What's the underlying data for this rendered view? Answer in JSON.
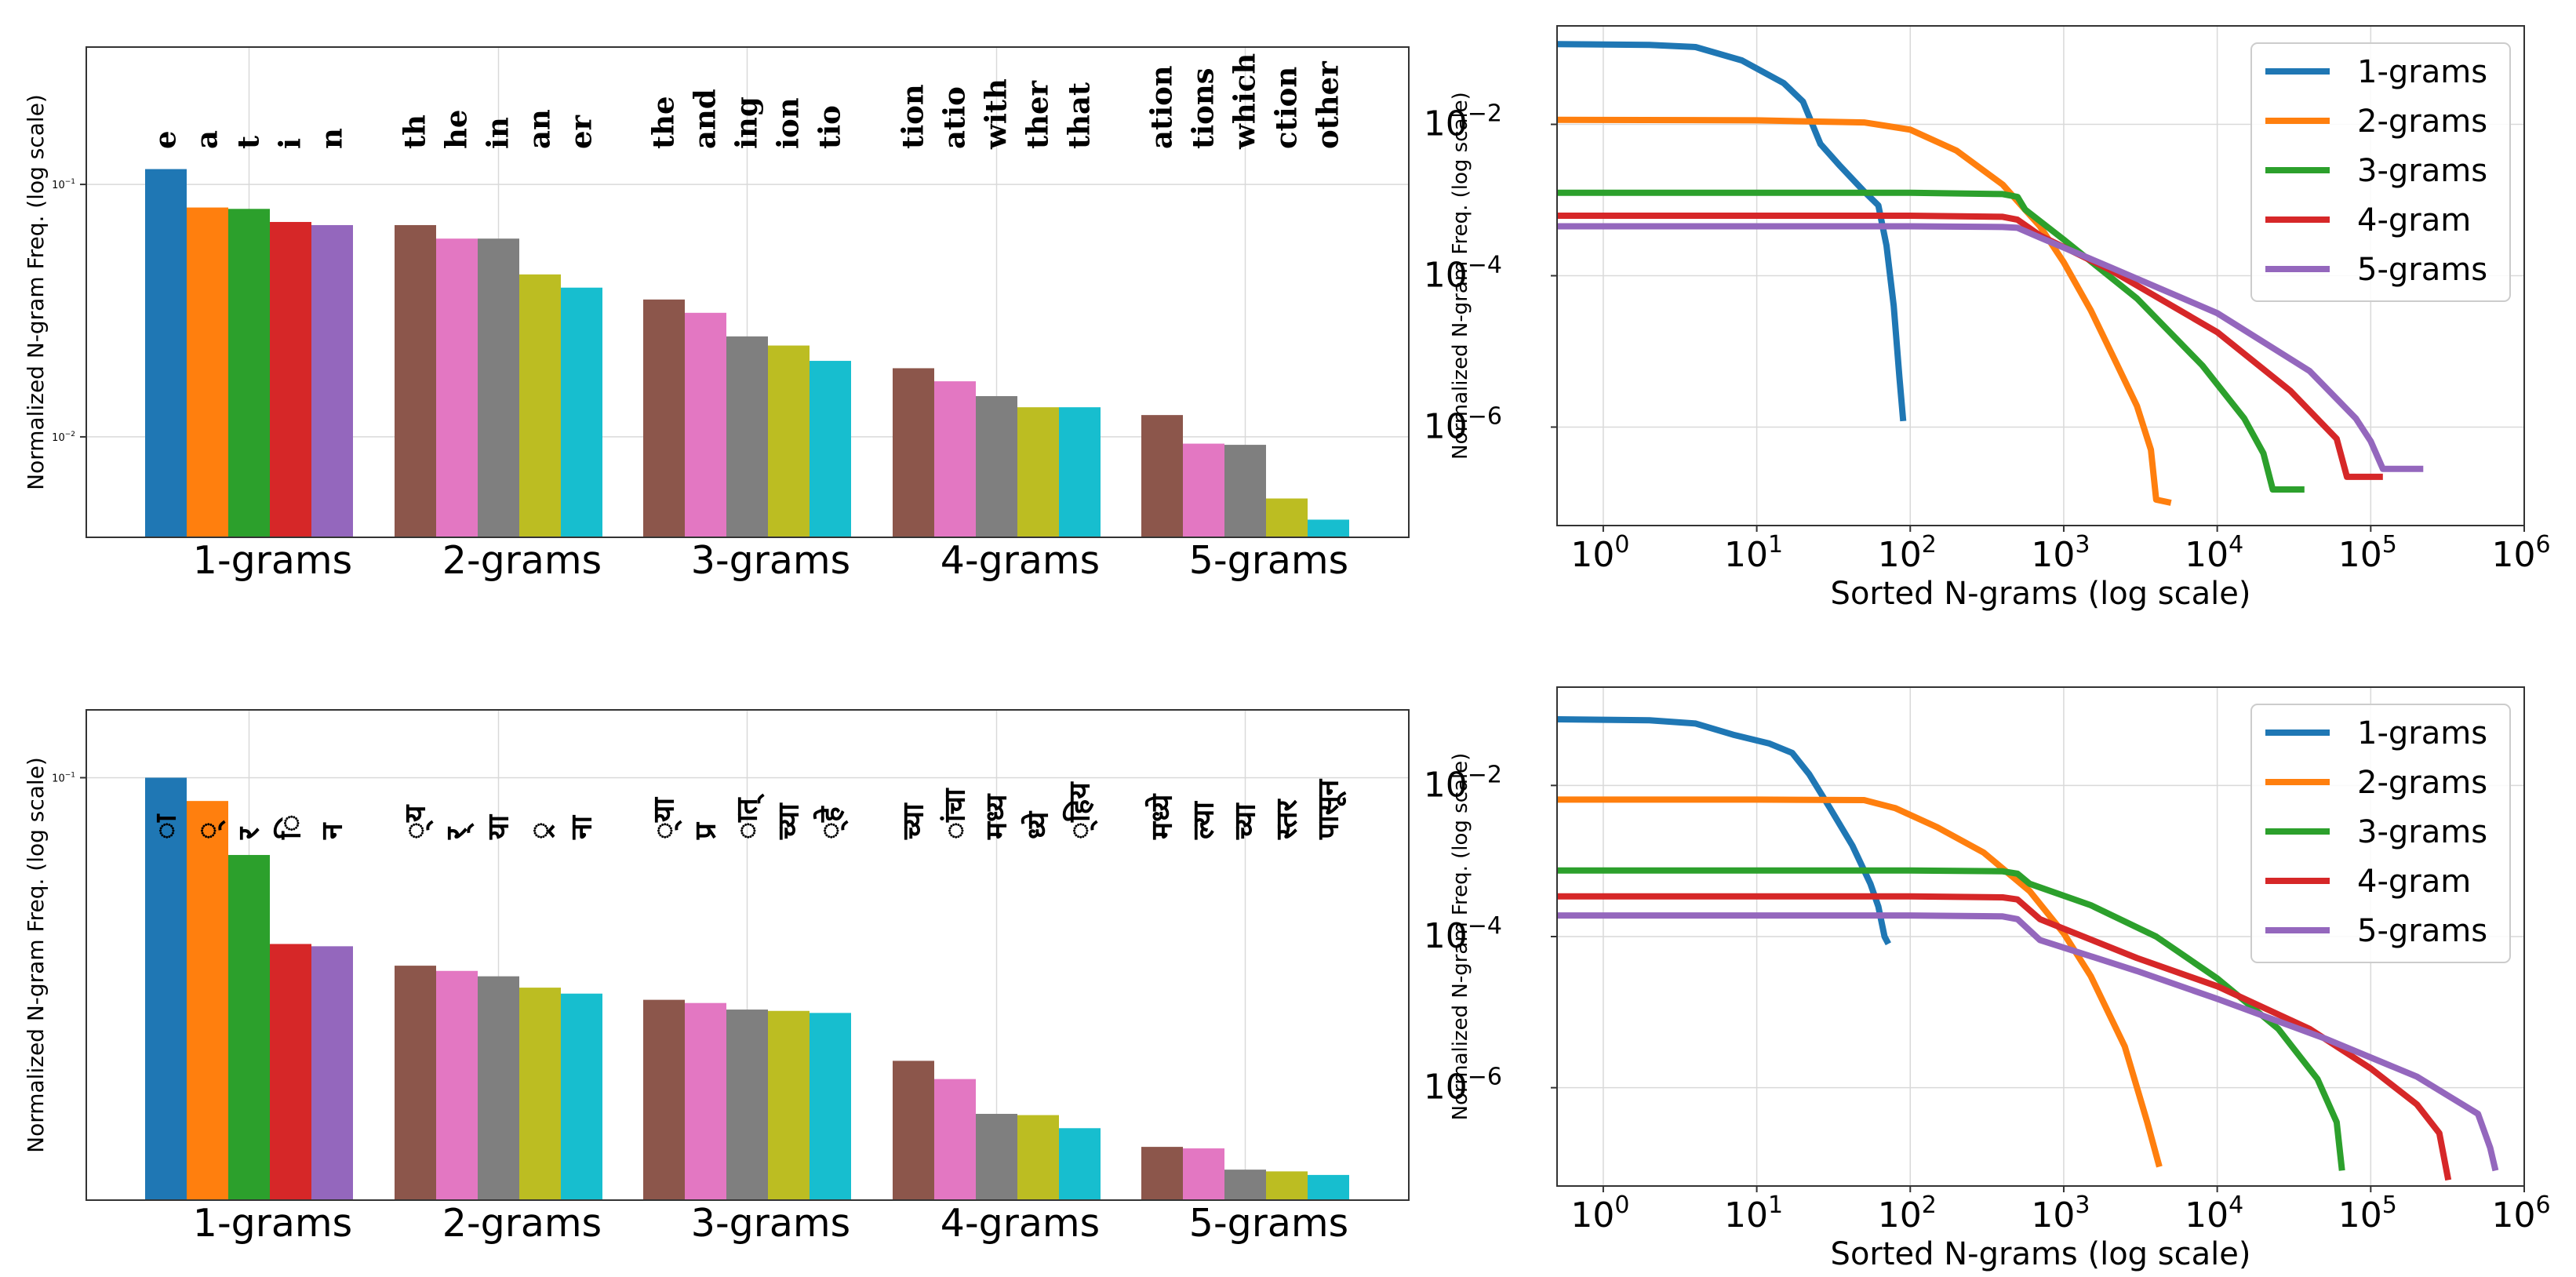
{
  "palette": [
    "#1f77b4",
    "#ff7f0e",
    "#2ca02c",
    "#d62728",
    "#9467bd",
    "#8c564b",
    "#e377c2",
    "#7f7f7f",
    "#bcbd22",
    "#17becf"
  ],
  "chart_data": [
    {
      "type": "bar",
      "panel": "top-left",
      "ylabel": "Normalized N-gram Freq. (log scale)",
      "yscale": "log",
      "ylim": [
        0.004,
        0.35
      ],
      "yticks": [
        {
          "value": 0.1,
          "base": "10",
          "exp": "−1"
        },
        {
          "value": 0.01,
          "base": "10",
          "exp": "−2"
        }
      ],
      "groups": [
        {
          "name": "1-grams",
          "labels": [
            "e",
            "a",
            "t",
            "i",
            "n"
          ],
          "values": [
            0.115,
            0.081,
            0.08,
            0.071,
            0.069
          ]
        },
        {
          "name": "2-grams",
          "labels": [
            "th",
            "he",
            "in",
            "an",
            "er"
          ],
          "values": [
            0.069,
            0.061,
            0.061,
            0.044,
            0.039
          ]
        },
        {
          "name": "3-grams",
          "labels": [
            "the",
            "and",
            "ing",
            "ion",
            "tio"
          ],
          "values": [
            0.035,
            0.031,
            0.025,
            0.023,
            0.02
          ]
        },
        {
          "name": "4-grams",
          "labels": [
            "tion",
            "atio",
            "with",
            "ther",
            "that"
          ],
          "values": [
            0.0187,
            0.0166,
            0.0145,
            0.0131,
            0.0131
          ]
        },
        {
          "name": "5-grams",
          "labels": [
            "ation",
            "tions",
            "which",
            "ction",
            "other"
          ],
          "values": [
            0.0122,
            0.0094,
            0.0093,
            0.0057,
            0.0047
          ]
        }
      ]
    },
    {
      "type": "line",
      "panel": "top-right",
      "xlabel": "Sorted N-grams (log scale)",
      "ylabel": "Normalized N-gram Freq. (log scale)",
      "xscale": "log",
      "yscale": "log",
      "xlim": [
        0.5,
        1000000
      ],
      "ylim": [
        5e-08,
        0.2
      ],
      "xticks": [
        {
          "value": 1,
          "base": "10",
          "exp": "0"
        },
        {
          "value": 10,
          "base": "10",
          "exp": "1"
        },
        {
          "value": 100,
          "base": "10",
          "exp": "2"
        },
        {
          "value": 1000,
          "base": "10",
          "exp": "3"
        },
        {
          "value": 10000,
          "base": "10",
          "exp": "4"
        },
        {
          "value": 100000,
          "base": "10",
          "exp": "5"
        },
        {
          "value": 1000000,
          "base": "10",
          "exp": "6"
        }
      ],
      "yticks": [
        {
          "value": 0.01,
          "base": "10",
          "exp": "−2"
        },
        {
          "value": 0.0001,
          "base": "10",
          "exp": "−4"
        },
        {
          "value": 1e-06,
          "base": "10",
          "exp": "−6"
        }
      ],
      "legend_position": "top-right",
      "series": [
        {
          "name": "1-grams",
          "color": "#1f77b4",
          "points": [
            [
              0.5,
              0.115
            ],
            [
              2,
              0.112
            ],
            [
              4,
              0.105
            ],
            [
              8,
              0.07
            ],
            [
              15,
              0.035
            ],
            [
              20,
              0.02
            ],
            [
              26,
              0.0055
            ],
            [
              35,
              0.0028
            ],
            [
              50,
              0.0013
            ],
            [
              62,
              0.00085
            ],
            [
              70,
              0.00025
            ],
            [
              78,
              4e-05
            ],
            [
              85,
              4.5e-06
            ],
            [
              90,
              1.2e-06
            ]
          ]
        },
        {
          "name": "2-grams",
          "color": "#ff7f0e",
          "points": [
            [
              0.5,
              0.0115
            ],
            [
              10,
              0.0113
            ],
            [
              50,
              0.0106
            ],
            [
              100,
              0.0085
            ],
            [
              200,
              0.0045
            ],
            [
              400,
              0.0016
            ],
            [
              700,
              0.00045
            ],
            [
              1000,
              0.00015
            ],
            [
              1500,
              3.5e-05
            ],
            [
              2200,
              7e-06
            ],
            [
              3000,
              1.9e-06
            ],
            [
              3700,
              5e-07
            ],
            [
              4000,
              1.1e-07
            ],
            [
              5000,
              1e-07
            ]
          ]
        },
        {
          "name": "3-grams",
          "color": "#2ca02c",
          "points": [
            [
              0.5,
              0.00125
            ],
            [
              100,
              0.00125
            ],
            [
              400,
              0.0012
            ],
            [
              500,
              0.0011
            ],
            [
              560,
              0.00075
            ],
            [
              1000,
              0.0003
            ],
            [
              3000,
              5e-05
            ],
            [
              8000,
              6.5e-06
            ],
            [
              15000,
              1.3e-06
            ],
            [
              20000,
              4.5e-07
            ],
            [
              23000,
              1.5e-07
            ],
            [
              37000,
              1.5e-07
            ]
          ]
        },
        {
          "name": "4-gram",
          "color": "#d62728",
          "points": [
            [
              0.5,
              0.00062
            ],
            [
              100,
              0.00062
            ],
            [
              400,
              0.0006
            ],
            [
              500,
              0.00055
            ],
            [
              700,
              0.00034
            ],
            [
              2000,
              0.00012
            ],
            [
              10000,
              1.8e-05
            ],
            [
              30000,
              3e-06
            ],
            [
              60000,
              7e-07
            ],
            [
              70000,
              2.2e-07
            ],
            [
              120000,
              2.2e-07
            ]
          ]
        },
        {
          "name": "5-grams",
          "color": "#9467bd",
          "points": [
            [
              0.5,
              0.00045
            ],
            [
              100,
              0.00045
            ],
            [
              400,
              0.00044
            ],
            [
              500,
              0.00043
            ],
            [
              700,
              0.00032
            ],
            [
              2000,
              0.00013
            ],
            [
              10000,
              3.2e-05
            ],
            [
              40000,
              5.5e-06
            ],
            [
              80000,
              1.3e-06
            ],
            [
              100000,
              6.5e-07
            ],
            [
              120000,
              2.8e-07
            ],
            [
              220000,
              2.8e-07
            ]
          ]
        }
      ]
    },
    {
      "type": "bar",
      "panel": "bottom-left",
      "ylabel": "Normalized N-gram Freq. (log scale)",
      "yscale": "log",
      "ylim": [
        0.008,
        0.15
      ],
      "yticks": [
        {
          "value": 0.1,
          "base": "10",
          "exp": "−1"
        }
      ],
      "groups": [
        {
          "name": "1-grams",
          "labels": [
            "ा",
            "्",
            "र",
            "ि",
            "न"
          ],
          "values": [
            0.1,
            0.087,
            0.063,
            0.037,
            0.0365
          ]
        },
        {
          "name": "2-grams",
          "labels": [
            "्य",
            "र्",
            "या",
            "्र",
            "ना"
          ],
          "values": [
            0.0325,
            0.0315,
            0.0305,
            0.0285,
            0.0275
          ]
        },
        {
          "name": "3-grams",
          "labels": [
            "्या",
            "प्र",
            "ात्",
            "च्या",
            "्हे"
          ],
          "values": [
            0.0265,
            0.026,
            0.025,
            0.0248,
            0.0245
          ]
        },
        {
          "name": "4-grams",
          "labels": [
            "च्या",
            "ांचा",
            "मध्य",
            "ध्ये",
            "्हिय"
          ],
          "values": [
            0.0184,
            0.0165,
            0.0134,
            0.0133,
            0.0123
          ]
        },
        {
          "name": "5-grams",
          "labels": [
            "मध्ये",
            "ल्या",
            "च्या",
            "स्तर",
            "पासून"
          ],
          "values": [
            0.011,
            0.0109,
            0.0096,
            0.0095,
            0.0093
          ]
        }
      ]
    },
    {
      "type": "line",
      "panel": "bottom-right",
      "xlabel": "Sorted N-grams (log scale)",
      "ylabel": "Normalized N-gram Freq. (log scale)",
      "xscale": "log",
      "yscale": "log",
      "xlim": [
        0.5,
        1000000
      ],
      "ylim": [
        5e-08,
        0.2
      ],
      "xticks": [
        {
          "value": 1,
          "base": "10",
          "exp": "0"
        },
        {
          "value": 10,
          "base": "10",
          "exp": "1"
        },
        {
          "value": 100,
          "base": "10",
          "exp": "2"
        },
        {
          "value": 1000,
          "base": "10",
          "exp": "3"
        },
        {
          "value": 10000,
          "base": "10",
          "exp": "4"
        },
        {
          "value": 100000,
          "base": "10",
          "exp": "5"
        },
        {
          "value": 1000000,
          "base": "10",
          "exp": "6"
        }
      ],
      "yticks": [
        {
          "value": 0.01,
          "base": "10",
          "exp": "−2"
        },
        {
          "value": 0.0001,
          "base": "10",
          "exp": "−4"
        },
        {
          "value": 1e-06,
          "base": "10",
          "exp": "−6"
        }
      ],
      "legend_position": "top-right",
      "series": [
        {
          "name": "1-grams",
          "color": "#1f77b4",
          "points": [
            [
              0.5,
              0.075
            ],
            [
              2,
              0.073
            ],
            [
              4,
              0.066
            ],
            [
              7,
              0.047
            ],
            [
              12,
              0.036
            ],
            [
              17,
              0.027
            ],
            [
              22,
              0.014
            ],
            [
              30,
              0.005
            ],
            [
              42,
              0.0016
            ],
            [
              55,
              0.0005
            ],
            [
              62,
              0.00025
            ],
            [
              68,
              0.0001
            ],
            [
              72,
              8e-05
            ]
          ]
        },
        {
          "name": "2-grams",
          "color": "#ff7f0e",
          "points": [
            [
              0.5,
              0.0065
            ],
            [
              10,
              0.0065
            ],
            [
              50,
              0.0064
            ],
            [
              80,
              0.005
            ],
            [
              150,
              0.0028
            ],
            [
              300,
              0.0013
            ],
            [
              600,
              0.0004
            ],
            [
              1000,
              0.00011
            ],
            [
              1500,
              3e-05
            ],
            [
              2500,
              3.5e-06
            ],
            [
              3500,
              3.5e-07
            ],
            [
              4200,
              9e-08
            ]
          ]
        },
        {
          "name": "3-grams",
          "color": "#2ca02c",
          "points": [
            [
              0.5,
              0.00075
            ],
            [
              100,
              0.00075
            ],
            [
              400,
              0.00073
            ],
            [
              500,
              0.00068
            ],
            [
              600,
              0.0005
            ],
            [
              1500,
              0.00026
            ],
            [
              4000,
              0.0001
            ],
            [
              10000,
              2.8e-05
            ],
            [
              25000,
              6e-06
            ],
            [
              45000,
              1.3e-06
            ],
            [
              60000,
              3.5e-07
            ],
            [
              65000,
              8e-08
            ]
          ]
        },
        {
          "name": "4-gram",
          "color": "#d62728",
          "points": [
            [
              0.5,
              0.00034
            ],
            [
              100,
              0.00034
            ],
            [
              400,
              0.00033
            ],
            [
              500,
              0.00031
            ],
            [
              700,
              0.00017
            ],
            [
              3000,
              5.2e-05
            ],
            [
              10000,
              2.2e-05
            ],
            [
              40000,
              6e-06
            ],
            [
              100000,
              1.8e-06
            ],
            [
              200000,
              6e-07
            ],
            [
              280000,
              2.5e-07
            ],
            [
              320000,
              6e-08
            ]
          ]
        },
        {
          "name": "5-grams",
          "color": "#9467bd",
          "points": [
            [
              0.5,
              0.00019
            ],
            [
              100,
              0.00019
            ],
            [
              400,
              0.000185
            ],
            [
              500,
              0.00017
            ],
            [
              700,
              9e-05
            ],
            [
              3000,
              3.5e-05
            ],
            [
              10000,
              1.5e-05
            ],
            [
              50000,
              4.5e-06
            ],
            [
              200000,
              1.4e-06
            ],
            [
              500000,
              4.5e-07
            ],
            [
              600000,
              1.6e-07
            ],
            [
              650000,
              8e-08
            ]
          ]
        }
      ]
    }
  ]
}
